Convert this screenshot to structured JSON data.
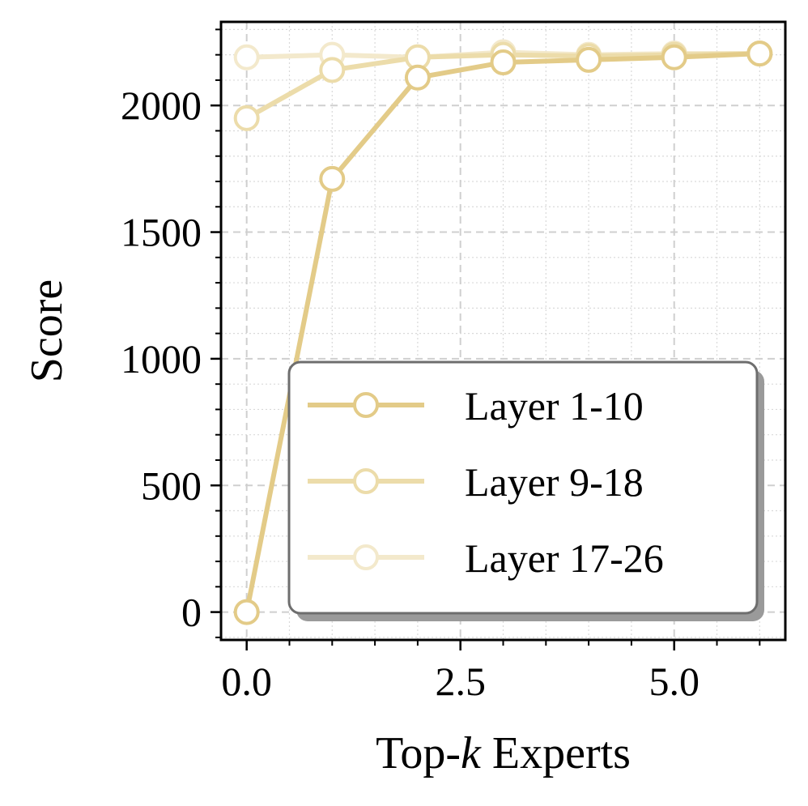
{
  "chart_data": {
    "type": "line",
    "title": "",
    "xlabel_parts": [
      "Top-",
      "k",
      " Experts"
    ],
    "ylabel": "Score",
    "xlim": [
      -0.3,
      6.3
    ],
    "ylim": [
      -110,
      2330
    ],
    "x_ticks": [
      0,
      2.5,
      5
    ],
    "x_tick_labels": [
      "0.0",
      "2.5",
      "5.0"
    ],
    "y_ticks": [
      0,
      500,
      1000,
      1500,
      2000
    ],
    "y_tick_labels": [
      "0",
      "500",
      "1000",
      "1500",
      "2000"
    ],
    "grid": true,
    "legend_position": "lower-right",
    "x": [
      0,
      1,
      2,
      3,
      4,
      5,
      6
    ],
    "series": [
      {
        "name": "Layer 17-26",
        "color": "#f3e9cc",
        "values": [
          2190,
          2200,
          2190,
          2210,
          2200,
          2205,
          2205
        ]
      },
      {
        "name": "Layer 9-18",
        "color": "#ecdcaa",
        "values": [
          1950,
          2140,
          2190,
          2200,
          2195,
          2200,
          2205
        ]
      },
      {
        "name": "Layer 1-10",
        "color": "#e3cb88",
        "values": [
          0,
          1710,
          2110,
          2170,
          2180,
          2190,
          2205
        ]
      }
    ],
    "legend_order": [
      "Layer 1-10",
      "Layer 9-18",
      "Layer 17-26"
    ]
  }
}
